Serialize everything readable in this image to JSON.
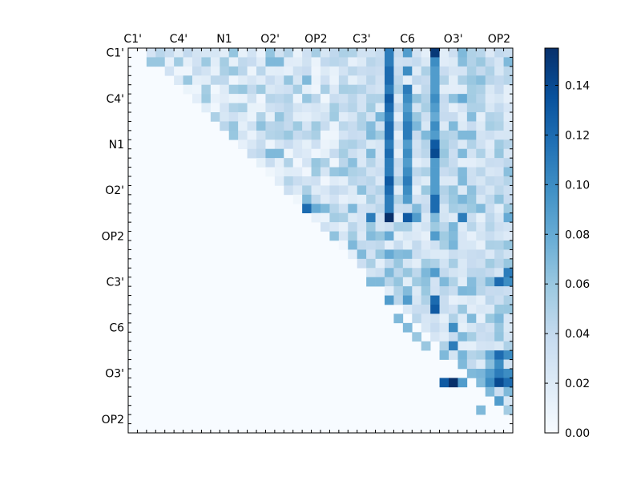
{
  "chart_data": {
    "type": "heatmap",
    "title": "",
    "colormap": "Blues",
    "n": 42,
    "x_tick_labels": [
      "C1'",
      "C4'",
      "N1",
      "O2'",
      "OP2",
      "C3'",
      "C6",
      "O3'",
      "OP2"
    ],
    "y_tick_labels": [
      "C1'",
      "C4'",
      "N1",
      "O2'",
      "OP2",
      "C3'",
      "C6",
      "O3'",
      "OP2"
    ],
    "tick_label_atom_index": [
      0,
      5,
      10,
      15,
      20,
      25,
      30,
      35,
      40
    ],
    "colorbar": {
      "min": 0.0,
      "max": 0.155,
      "ticks": [
        0.0,
        0.02,
        0.04,
        0.06,
        0.08,
        0.1,
        0.12,
        0.14
      ],
      "tick_labels": [
        "0.00",
        "0.02",
        "0.04",
        "0.06",
        "0.08",
        "0.10",
        "0.12",
        "0.14"
      ]
    },
    "strong_cells": [
      [
        0,
        28,
        0.11
      ],
      [
        0,
        30,
        0.09
      ],
      [
        0,
        33,
        0.15
      ],
      [
        0,
        36,
        0.07
      ],
      [
        1,
        2,
        0.06
      ],
      [
        1,
        3,
        0.06
      ],
      [
        1,
        15,
        0.07
      ],
      [
        1,
        16,
        0.07
      ],
      [
        1,
        28,
        0.11
      ],
      [
        1,
        33,
        0.1
      ],
      [
        1,
        41,
        0.07
      ],
      [
        2,
        11,
        0.06
      ],
      [
        2,
        28,
        0.12
      ],
      [
        2,
        30,
        0.1
      ],
      [
        2,
        33,
        0.09
      ],
      [
        3,
        19,
        0.07
      ],
      [
        3,
        28,
        0.12
      ],
      [
        3,
        33,
        0.09
      ],
      [
        3,
        37,
        0.06
      ],
      [
        4,
        28,
        0.11
      ],
      [
        4,
        30,
        0.11
      ],
      [
        4,
        33,
        0.09
      ],
      [
        5,
        28,
        0.13
      ],
      [
        5,
        30,
        0.1
      ],
      [
        5,
        33,
        0.1
      ],
      [
        5,
        36,
        0.08
      ],
      [
        6,
        28,
        0.12
      ],
      [
        6,
        30,
        0.09
      ],
      [
        6,
        33,
        0.09
      ],
      [
        7,
        28,
        0.11
      ],
      [
        7,
        30,
        0.1
      ],
      [
        7,
        33,
        0.08
      ],
      [
        8,
        28,
        0.12
      ],
      [
        8,
        30,
        0.11
      ],
      [
        8,
        33,
        0.1
      ],
      [
        8,
        35,
        0.07
      ],
      [
        9,
        26,
        0.07
      ],
      [
        9,
        28,
        0.12
      ],
      [
        9,
        30,
        0.11
      ],
      [
        9,
        33,
        0.09
      ],
      [
        9,
        36,
        0.07
      ],
      [
        9,
        37,
        0.07
      ],
      [
        10,
        28,
        0.11
      ],
      [
        10,
        30,
        0.09
      ],
      [
        10,
        33,
        0.13
      ],
      [
        11,
        15,
        0.07
      ],
      [
        11,
        16,
        0.07
      ],
      [
        11,
        26,
        0.07
      ],
      [
        11,
        28,
        0.12
      ],
      [
        11,
        30,
        0.1
      ],
      [
        11,
        33,
        0.14
      ],
      [
        11,
        36,
        0.07
      ],
      [
        12,
        28,
        0.11
      ],
      [
        12,
        30,
        0.09
      ],
      [
        12,
        33,
        0.09
      ],
      [
        13,
        28,
        0.11
      ],
      [
        13,
        30,
        0.1
      ],
      [
        13,
        33,
        0.09
      ],
      [
        14,
        28,
        0.13
      ],
      [
        14,
        30,
        0.11
      ],
      [
        14,
        33,
        0.09
      ],
      [
        14,
        36,
        0.07
      ],
      [
        15,
        28,
        0.12
      ],
      [
        15,
        30,
        0.1
      ],
      [
        15,
        33,
        0.09
      ],
      [
        16,
        19,
        0.07
      ],
      [
        16,
        28,
        0.11
      ],
      [
        16,
        30,
        0.09
      ],
      [
        16,
        33,
        0.12
      ],
      [
        17,
        19,
        0.12
      ],
      [
        17,
        20,
        0.08
      ],
      [
        17,
        21,
        0.07
      ],
      [
        17,
        28,
        0.11
      ],
      [
        17,
        33,
        0.12
      ],
      [
        18,
        26,
        0.11
      ],
      [
        18,
        28,
        0.155
      ],
      [
        18,
        30,
        0.13
      ],
      [
        18,
        31,
        0.09
      ],
      [
        18,
        36,
        0.11
      ],
      [
        18,
        41,
        0.08
      ],
      [
        20,
        28,
        0.08
      ],
      [
        20,
        33,
        0.09
      ],
      [
        22,
        28,
        0.08
      ],
      [
        22,
        30,
        0.07
      ],
      [
        24,
        28,
        0.07
      ],
      [
        24,
        33,
        0.09
      ],
      [
        24,
        41,
        0.11
      ],
      [
        25,
        26,
        0.07
      ],
      [
        25,
        27,
        0.07
      ],
      [
        25,
        34,
        0.07
      ],
      [
        25,
        39,
        0.07
      ],
      [
        25,
        40,
        0.12
      ],
      [
        25,
        41,
        0.1
      ],
      [
        27,
        28,
        0.09
      ],
      [
        27,
        30,
        0.09
      ],
      [
        27,
        33,
        0.12
      ],
      [
        28,
        33,
        0.13
      ],
      [
        28,
        36,
        0.06
      ],
      [
        29,
        29,
        0.07
      ],
      [
        29,
        37,
        0.07
      ],
      [
        30,
        30,
        0.07
      ],
      [
        30,
        35,
        0.1
      ],
      [
        31,
        31,
        0.06
      ],
      [
        31,
        36,
        0.07
      ],
      [
        32,
        32,
        0.06
      ],
      [
        32,
        35,
        0.11
      ],
      [
        33,
        34,
        0.07
      ],
      [
        33,
        39,
        0.08
      ],
      [
        33,
        40,
        0.12
      ],
      [
        33,
        41,
        0.1
      ],
      [
        34,
        36,
        0.07
      ],
      [
        34,
        40,
        0.1
      ],
      [
        35,
        37,
        0.07
      ],
      [
        35,
        39,
        0.09
      ],
      [
        35,
        40,
        0.11
      ],
      [
        35,
        41,
        0.1
      ],
      [
        36,
        34,
        0.13
      ],
      [
        36,
        35,
        0.155
      ],
      [
        36,
        36,
        0.09
      ],
      [
        36,
        39,
        0.1
      ],
      [
        36,
        40,
        0.14
      ],
      [
        36,
        41,
        0.12
      ],
      [
        37,
        39,
        0.07
      ],
      [
        37,
        41,
        0.07
      ],
      [
        38,
        40,
        0.09
      ],
      [
        39,
        38,
        0.07
      ]
    ]
  }
}
